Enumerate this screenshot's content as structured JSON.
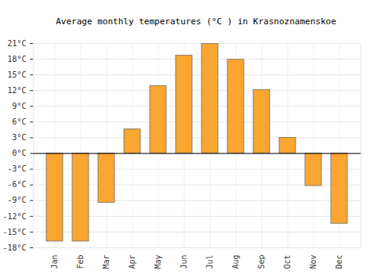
{
  "chart_data": {
    "type": "bar",
    "title": "Average monthly temperatures (°C ) in Krasnoznamenskoe",
    "categories": [
      "Jan",
      "Feb",
      "Mar",
      "Apr",
      "May",
      "Jun",
      "Jul",
      "Aug",
      "Sep",
      "Oct",
      "Nov",
      "Dec"
    ],
    "values": [
      -16.8,
      -16.8,
      -9.4,
      4.6,
      12.9,
      18.7,
      20.9,
      17.9,
      12.1,
      3.0,
      -6.2,
      -13.4
    ],
    "color": "#fba630",
    "ylim": [
      -18,
      21
    ],
    "yticks": [
      {
        "value": -18,
        "label": "-18°C"
      },
      {
        "value": -15,
        "label": "-15°C"
      },
      {
        "value": -12,
        "label": "-12°C"
      },
      {
        "value": -9,
        "label": "-9°C"
      },
      {
        "value": -6,
        "label": "-6°C"
      },
      {
        "value": -3,
        "label": "-3°C"
      },
      {
        "value": 0,
        "label": "0°C"
      },
      {
        "value": 3,
        "label": "3°C"
      },
      {
        "value": 6,
        "label": "6°C"
      },
      {
        "value": 9,
        "label": "9°C"
      },
      {
        "value": 12,
        "label": "12°C"
      },
      {
        "value": 15,
        "label": "15°C"
      },
      {
        "value": 18,
        "label": "18°C"
      },
      {
        "value": 21,
        "label": "21°C"
      }
    ],
    "grid": true
  }
}
